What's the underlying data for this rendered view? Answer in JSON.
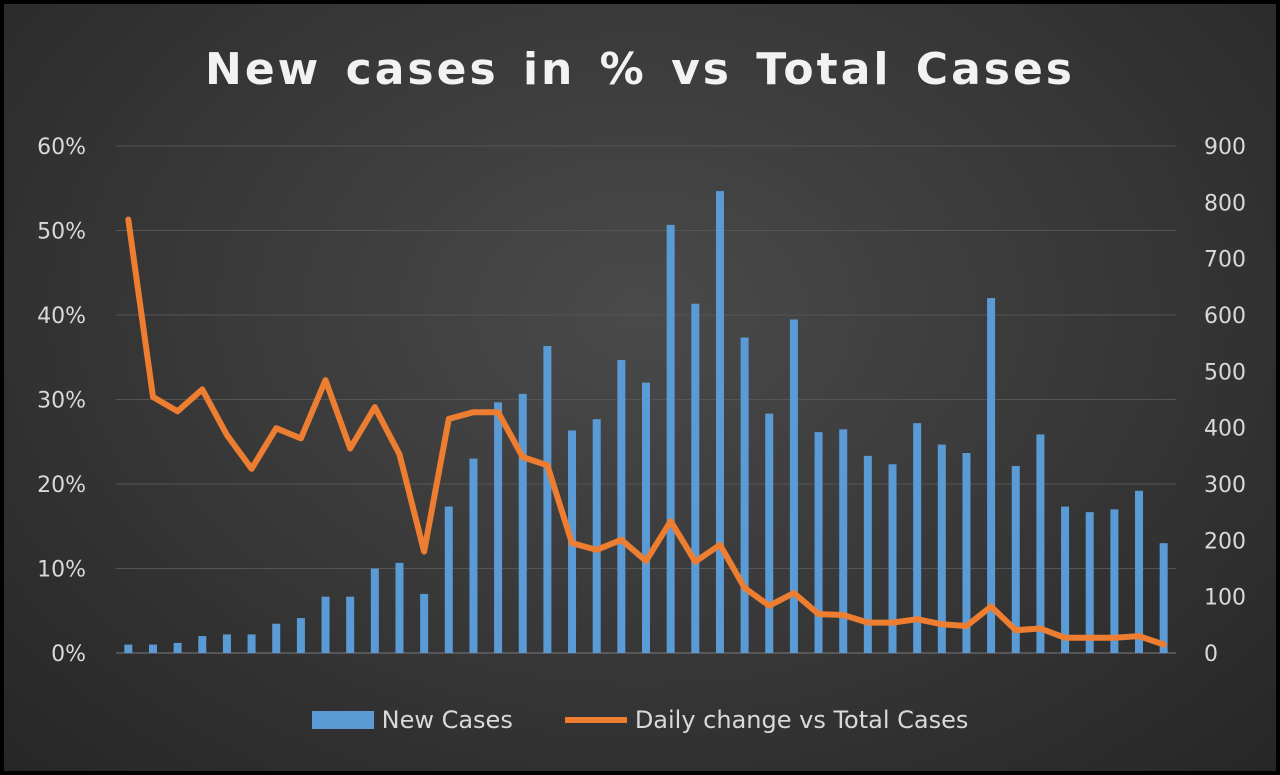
{
  "chart_data": {
    "type": "bar",
    "title": "New cases in % vs Total Cases",
    "xlabel": "",
    "ylabel": "",
    "y_left": {
      "ticks": [
        "0%",
        "10%",
        "20%",
        "30%",
        "40%",
        "50%",
        "60%"
      ],
      "range": [
        0,
        60
      ]
    },
    "y_right": {
      "ticks": [
        "0",
        "100",
        "200",
        "300",
        "400",
        "500",
        "600",
        "700",
        "800",
        "900"
      ],
      "range": [
        0,
        900
      ]
    },
    "grid": true,
    "legend_position": "bottom",
    "series": [
      {
        "name": "New Cases",
        "type": "bar",
        "axis": "right",
        "color": "#5b9bd5",
        "values": [
          15,
          15,
          18,
          30,
          33,
          33,
          52,
          62,
          100,
          100,
          150,
          160,
          105,
          260,
          345,
          445,
          460,
          545,
          395,
          415,
          520,
          480,
          760,
          620,
          820,
          560,
          425,
          592,
          392,
          397,
          350,
          335,
          408,
          370,
          355,
          630,
          332,
          388,
          260,
          250,
          255,
          288,
          195
        ]
      },
      {
        "name": "Daily change vs Total Cases",
        "type": "line",
        "axis": "left",
        "color": "#ed7d31",
        "values": [
          51.3,
          30.3,
          28.6,
          31.2,
          25.8,
          21.8,
          26.6,
          25.4,
          32.3,
          24.2,
          29.1,
          23.5,
          12.0,
          27.7,
          28.5,
          28.5,
          23.2,
          22.2,
          13.0,
          12.2,
          13.4,
          10.9,
          15.6,
          10.8,
          12.8,
          7.7,
          5.6,
          7.1,
          4.6,
          4.5,
          3.6,
          3.6,
          4.0,
          3.4,
          3.2,
          5.5,
          2.7,
          2.9,
          1.8,
          1.8,
          1.8,
          2.0,
          1.0
        ]
      }
    ]
  }
}
